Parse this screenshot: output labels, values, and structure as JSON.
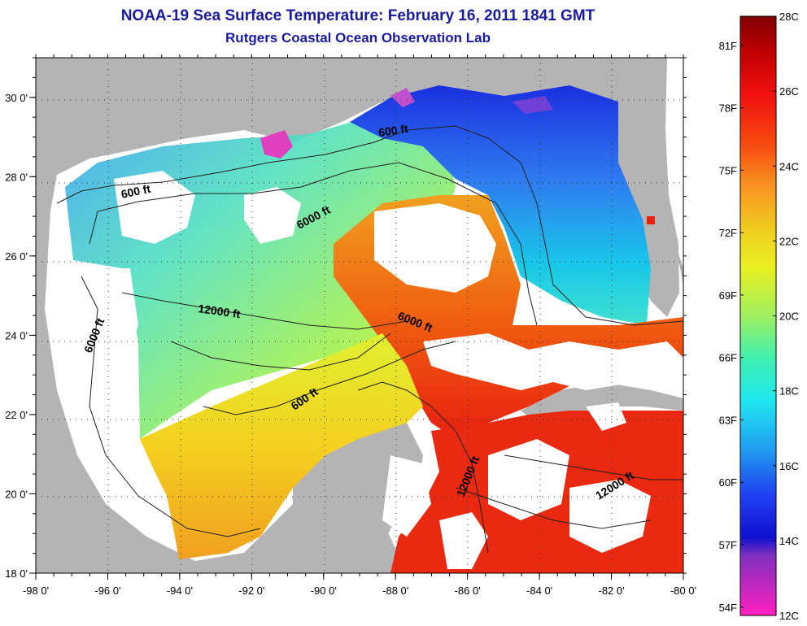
{
  "title": "NOAA-19 Sea Surface Temperature:  February 16, 2011 1841 GMT",
  "subtitle": "Rutgers Coastal Ocean Observation Lab",
  "axes": {
    "x_ticks": [
      "-98 0'",
      "-96 0'",
      "-94 0'",
      "-92 0'",
      "-90 0'",
      "-88 0'",
      "-86 0'",
      "-84 0'",
      "-82 0'",
      "-80 0'"
    ],
    "y_ticks": [
      "30 0'",
      "28 0'",
      "26 0'",
      "24 0'",
      "22 0'",
      "20 0'",
      "18 0'"
    ],
    "lon_range": [
      -98,
      -80
    ],
    "lat_range": [
      18,
      31
    ]
  },
  "contour_labels": [
    "600 ft",
    "600 ft",
    "6000 ft",
    "12000 ft",
    "6000 ft",
    "6000 ft",
    "600 ft",
    "12000 ft",
    "12000 ft"
  ],
  "colorbar": {
    "celsius": [
      "28C",
      "26C",
      "24C",
      "22C",
      "20C",
      "18C",
      "16C",
      "14C",
      "12C"
    ],
    "fahrenheit": [
      "81F",
      "78F",
      "75F",
      "72F",
      "69F",
      "66F",
      "63F",
      "60F",
      "57F",
      "54F"
    ],
    "range_c": [
      12,
      28
    ]
  },
  "colors": {
    "land": "#b4b4b4",
    "cloud": "#ffffff",
    "title": "#1a1aa0"
  }
}
